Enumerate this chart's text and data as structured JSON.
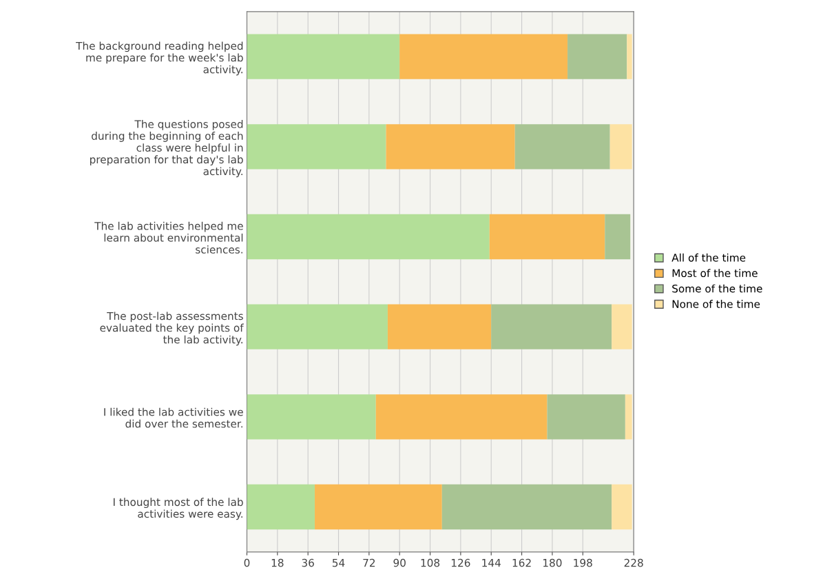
{
  "chart_data": {
    "type": "bar",
    "orientation": "horizontal",
    "stacked": true,
    "categories": [
      "The background reading helped\nme prepare for the week's lab\nactivity.",
      "The questions posed\nduring the beginning of each\nclass were helpful in\npreparation for that day's lab\nactivity.",
      "The lab activities helped me\nlearn about environmental\nsciences.",
      "The post-lab assessments\nevaluated the key points of\nthe lab activity.",
      "I liked the lab activities we\ndid over the semester.",
      "I thought most of the lab\nactivities were easy."
    ],
    "series": [
      {
        "name": "All of the time",
        "color": "#b3df98",
        "values": [
          90,
          82,
          143,
          83,
          76,
          40
        ]
      },
      {
        "name": "Most of the time",
        "color": "#f9b953",
        "values": [
          99,
          76,
          68,
          61,
          101,
          75
        ]
      },
      {
        "name": "Some of the time",
        "color": "#a8c493",
        "values": [
          35,
          56,
          15,
          71,
          46,
          100
        ]
      },
      {
        "name": "None of the time",
        "color": "#fde2a3",
        "values": [
          3,
          13,
          0,
          12,
          4,
          12
        ]
      }
    ],
    "xlim": [
      0,
      228
    ],
    "xticks": [
      0,
      18,
      36,
      54,
      72,
      90,
      108,
      126,
      144,
      162,
      180,
      198,
      228
    ],
    "grid": "x",
    "legend": "right"
  }
}
